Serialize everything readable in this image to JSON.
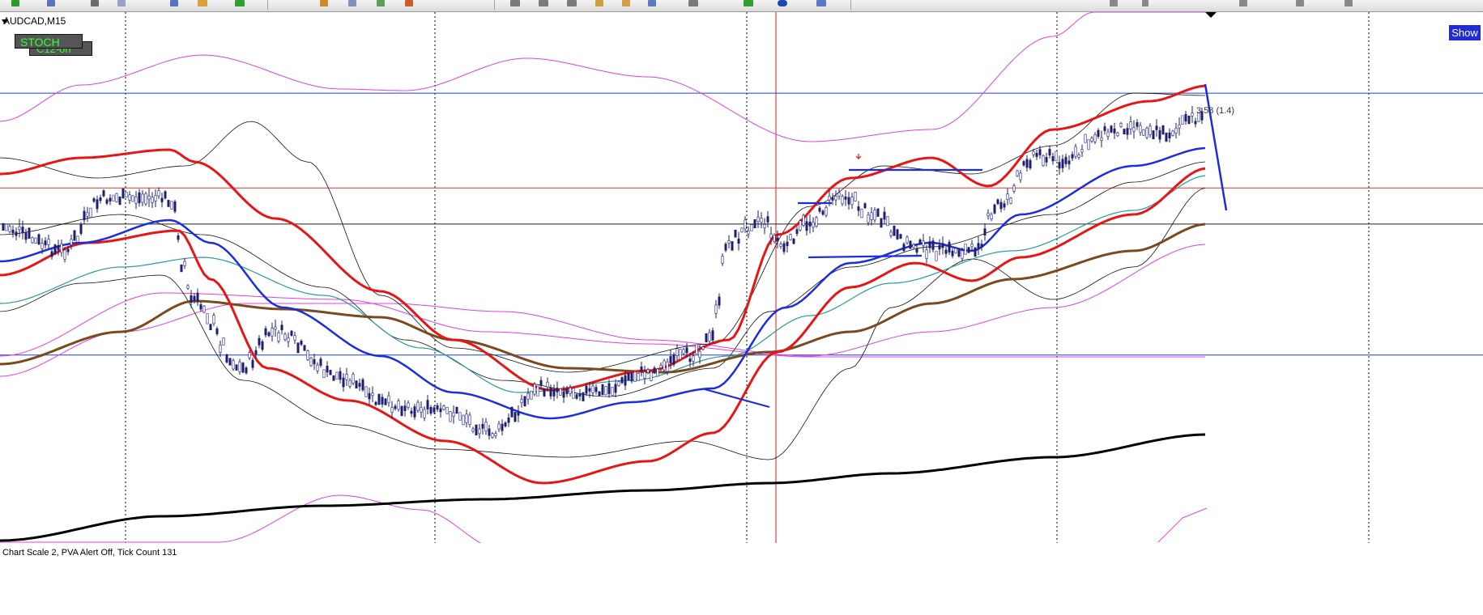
{
  "toolbar": {
    "icons": [
      "new-chart-icon",
      "profiles-icon",
      "crosshair-icon",
      "zoom-in-icon",
      "zoom-out-icon",
      "add-indicator-icon",
      "template-icon",
      "periods-icon",
      "line-tools-icon"
    ]
  },
  "chart_data": {
    "type": "candlestick",
    "title": "AUDCAD,M15",
    "indicator_buttons": [
      "STOCH",
      "C12-on"
    ],
    "show_button": "Show",
    "level_label": "3.58 (1.4)",
    "subwindow_label": "Chart Scale  2,   PVA Alert Off,   Tick Count  131",
    "horizontal_lines": [
      {
        "color": "#1f3fd0",
        "level": 0.84
      },
      {
        "color": "#e83030",
        "level": 0.819
      },
      {
        "color": "#222222",
        "level": 0.811
      },
      {
        "color": "#1f3fd0",
        "level": 0.782
      }
    ],
    "vertical_separators": [
      155,
      537,
      922,
      1305,
      1690
    ],
    "red_vertical_line": 958,
    "colors": {
      "ema_red": "#e81515",
      "ema_blue": "#1a2ee0",
      "ema_teal": "#2a9a9a",
      "sma_brown": "#7a4a1e",
      "sma_black": "#000000",
      "band_magenta": "#e040e0",
      "bull_volume": "#17a050",
      "bear_volume": "#d21a9a",
      "neutral_volume": "#c8c8d4",
      "candles": "#1c1e70"
    }
  }
}
